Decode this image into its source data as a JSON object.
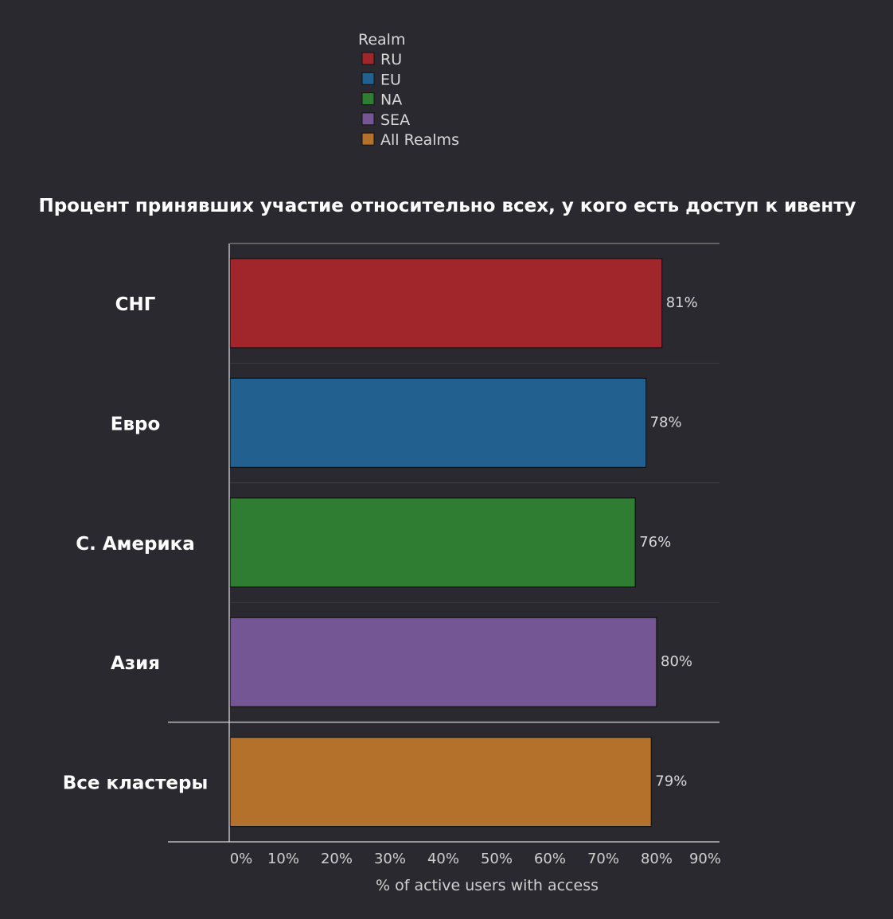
{
  "chart_data": {
    "type": "bar",
    "orientation": "horizontal",
    "title": "Процент принявших участие относительно всех, у кого есть доступ к ивенту",
    "legend": {
      "title": "Realm",
      "placement": "top-center",
      "entries": [
        {
          "label": "RU",
          "color": "#a0262b"
        },
        {
          "label": "EU",
          "color": "#22618f"
        },
        {
          "label": "NA",
          "color": "#2e7d32"
        },
        {
          "label": "SEA",
          "color": "#745694"
        },
        {
          "label": "All Realms",
          "color": "#b4712c"
        }
      ]
    },
    "categories": [
      "СНГ",
      "Евро",
      "С. Америка",
      "Азия",
      "Все кластеры"
    ],
    "values": [
      81,
      78,
      76,
      80,
      79
    ],
    "value_labels": [
      "81%",
      "78%",
      "76%",
      "80%",
      "79%"
    ],
    "colors": [
      "#a0262b",
      "#22618f",
      "#2e7d32",
      "#745694",
      "#b4712c"
    ],
    "xlabel": "% of active users with access",
    "ylabel": "",
    "xlim": [
      0,
      90
    ],
    "xticks": [
      "0%",
      "10%",
      "20%",
      "30%",
      "40%",
      "50%",
      "60%",
      "70%",
      "80%",
      "90%"
    ],
    "grid": true
  }
}
